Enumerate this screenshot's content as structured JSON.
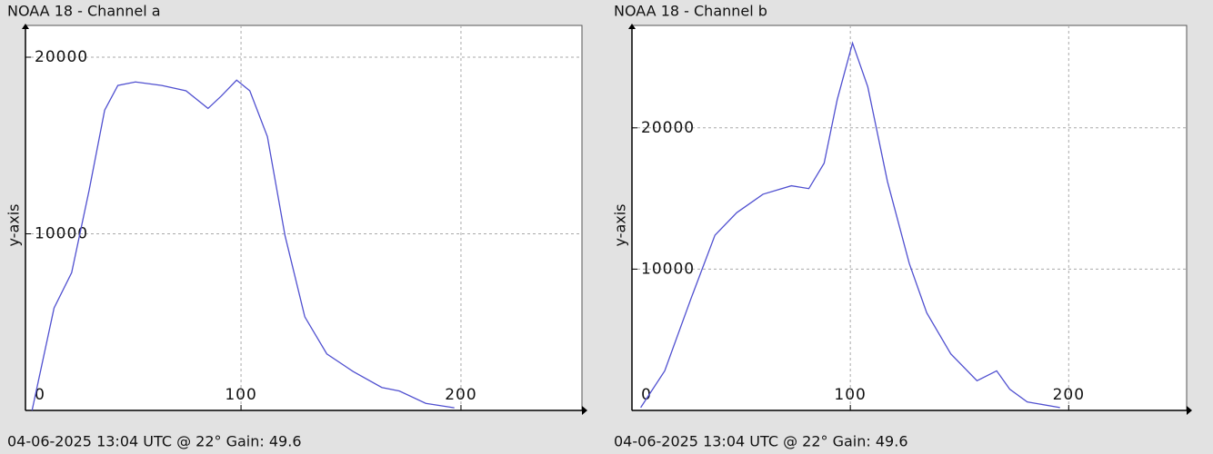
{
  "chart_data": [
    {
      "type": "line",
      "title": "NOAA 18 - Channel a",
      "caption": "04-06-2025 13:04 UTC @ 22° Gain: 49.6",
      "y_label": "y-axis",
      "series": [
        {
          "color": "#5050d0",
          "x": [
            5,
            15,
            23,
            31,
            38,
            44,
            52,
            64,
            75,
            85,
            91,
            98,
            104,
            112,
            120,
            129,
            139,
            151,
            164,
            172,
            184,
            197
          ],
          "values": [
            0,
            5800,
            7800,
            12500,
            17000,
            18400,
            18600,
            18400,
            18100,
            17100,
            17800,
            18700,
            18100,
            15500,
            9900,
            5300,
            3200,
            2200,
            1300,
            1100,
            400,
            150
          ]
        }
      ],
      "xlim": [
        2,
        255
      ],
      "ylim": [
        0,
        21800
      ],
      "xticks": [
        0,
        100,
        200
      ],
      "yticks": [
        10000,
        20000
      ],
      "grid": true
    },
    {
      "type": "line",
      "title": "NOAA 18 - Channel b",
      "caption": "04-06-2025 13:04 UTC @ 22° Gain: 49.6",
      "y_label": "y-axis",
      "series": [
        {
          "color": "#5050d0",
          "x": [
            4,
            15,
            27,
            38,
            48,
            60,
            73,
            81,
            88,
            94,
            101,
            108,
            117,
            127,
            135,
            146,
            158,
            167,
            173,
            181,
            196
          ],
          "values": [
            200,
            2800,
            7900,
            12400,
            14000,
            15300,
            15900,
            15700,
            17500,
            22000,
            26000,
            22900,
            16200,
            10400,
            6900,
            4000,
            2100,
            2800,
            1500,
            600,
            200
          ]
        }
      ],
      "xlim": [
        0,
        254
      ],
      "ylim": [
        0,
        27250
      ],
      "xticks": [
        0,
        100,
        200
      ],
      "yticks": [
        10000,
        20000
      ],
      "grid": true
    }
  ]
}
